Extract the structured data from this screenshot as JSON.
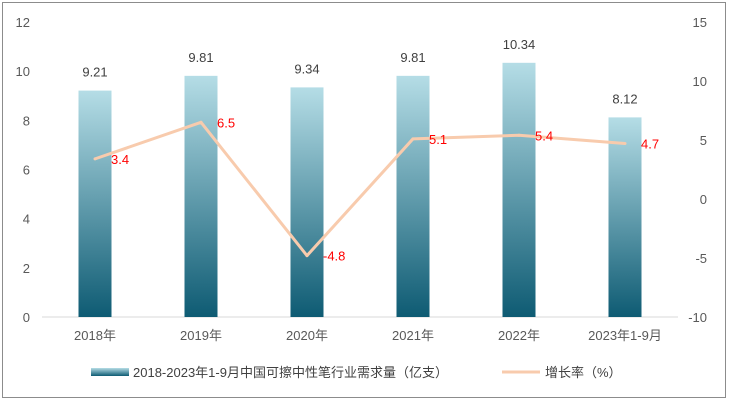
{
  "chart_data": {
    "type": "bar",
    "categories": [
      "2018年",
      "2019年",
      "2020年",
      "2021年",
      "2022年",
      "2023年1-9月"
    ],
    "series": [
      {
        "name": "2018-2023年1-9月中国可擦中性笔行业需求量（亿支）",
        "type": "bar",
        "axis": "left",
        "values": [
          9.21,
          9.81,
          9.34,
          9.81,
          10.34,
          8.12
        ],
        "labels": [
          "9.21",
          "9.81",
          "9.34",
          "9.81",
          "10.34",
          "8.12"
        ],
        "color_top": "#b5dde6",
        "color_bottom": "#0e5b73"
      },
      {
        "name": "增长率（%）",
        "type": "line",
        "axis": "right",
        "values": [
          3.4,
          6.5,
          -4.8,
          5.1,
          5.4,
          4.7
        ],
        "labels": [
          "3.4",
          "6.5",
          "-4.8",
          "5.1",
          "5.4",
          "4.7"
        ],
        "color": "#f8cbad",
        "label_color": "#ff0000"
      }
    ],
    "y_left": {
      "min": 0,
      "max": 12,
      "ticks": [
        "0",
        "2",
        "4",
        "6",
        "8",
        "10",
        "12"
      ]
    },
    "y_right": {
      "min": -10,
      "max": 15,
      "ticks": [
        "-10",
        "-5",
        "0",
        "5",
        "10",
        "15"
      ]
    },
    "grid": false,
    "legend_position": "bottom"
  }
}
